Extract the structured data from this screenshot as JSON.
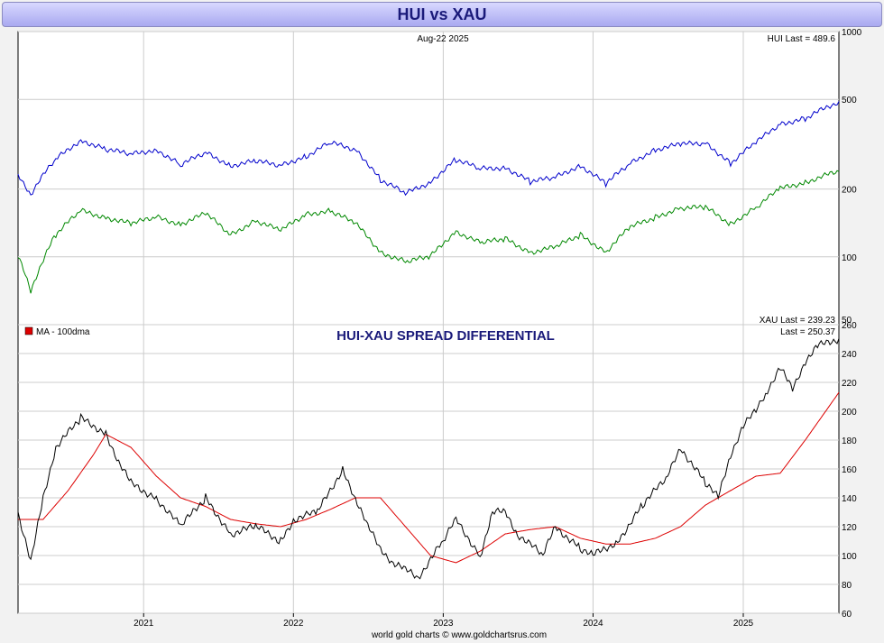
{
  "title": "HUI vs XAU",
  "footer": "world gold charts © www.goldchartsrus.com",
  "chart_data": [
    {
      "type": "line",
      "panel": "top",
      "date_label": "Aug-22  2025",
      "y_scale": "log",
      "ylim": [
        50,
        1000
      ],
      "y_ticks": [
        1000,
        500,
        200,
        100,
        50
      ],
      "x_range": [
        "2020-03",
        "2025-08-22"
      ],
      "grid": true,
      "annotations": [
        "HUI Last = 489.6",
        "XAU Last = 239.23"
      ],
      "series": [
        {
          "name": "HUI",
          "color": "#0000cc",
          "x": [
            "2020-03",
            "2020-04",
            "2020-06",
            "2020-08",
            "2020-10",
            "2020-12",
            "2021-02",
            "2021-04",
            "2021-06",
            "2021-08",
            "2021-10",
            "2021-12",
            "2022-02",
            "2022-04",
            "2022-06",
            "2022-08",
            "2022-10",
            "2022-12",
            "2023-02",
            "2023-04",
            "2023-06",
            "2023-08",
            "2023-10",
            "2023-12",
            "2024-02",
            "2024-04",
            "2024-06",
            "2024-08",
            "2024-10",
            "2024-12",
            "2025-02",
            "2025-04",
            "2025-06",
            "2025-08-22"
          ],
          "values": [
            230,
            190,
            270,
            330,
            300,
            285,
            300,
            255,
            290,
            255,
            265,
            255,
            280,
            320,
            300,
            220,
            190,
            215,
            270,
            245,
            250,
            215,
            225,
            255,
            210,
            260,
            300,
            315,
            320,
            260,
            320,
            390,
            410,
            489.6
          ]
        },
        {
          "name": "XAU",
          "color": "#008800",
          "x": [
            "2020-03",
            "2020-04",
            "2020-06",
            "2020-08",
            "2020-10",
            "2020-12",
            "2021-02",
            "2021-04",
            "2021-06",
            "2021-08",
            "2021-10",
            "2021-12",
            "2022-02",
            "2022-04",
            "2022-06",
            "2022-08",
            "2022-10",
            "2022-12",
            "2023-02",
            "2023-04",
            "2023-06",
            "2023-08",
            "2023-10",
            "2023-12",
            "2024-02",
            "2024-04",
            "2024-06",
            "2024-08",
            "2024-10",
            "2024-12",
            "2025-02",
            "2025-04",
            "2025-06",
            "2025-08-22"
          ],
          "values": [
            100,
            70,
            125,
            160,
            150,
            140,
            150,
            140,
            155,
            125,
            145,
            130,
            155,
            160,
            140,
            105,
            95,
            100,
            130,
            115,
            120,
            105,
            110,
            125,
            105,
            135,
            150,
            165,
            165,
            140,
            165,
            200,
            215,
            239.23
          ]
        }
      ]
    },
    {
      "type": "line",
      "panel": "bottom",
      "title": "HUI-XAU SPREAD DIFFERENTIAL",
      "ylim": [
        60,
        260
      ],
      "y_ticks": [
        260,
        240,
        220,
        200,
        180,
        160,
        140,
        120,
        100,
        80,
        60
      ],
      "x_tick_labels": [
        "2021",
        "2022",
        "2023",
        "2024",
        "2025"
      ],
      "x_range": [
        "2020-03",
        "2025-08-22"
      ],
      "grid": true,
      "legend": "top-left",
      "annotations": [
        "Last = 250.37"
      ],
      "series": [
        {
          "name": "spread",
          "color": "#000000",
          "x": [
            "2020-03",
            "2020-04",
            "2020-05",
            "2020-06",
            "2020-08",
            "2020-10",
            "2020-11",
            "2020-12",
            "2021-02",
            "2021-04",
            "2021-06",
            "2021-08",
            "2021-10",
            "2021-12",
            "2022-01",
            "2022-03",
            "2022-05",
            "2022-06",
            "2022-07",
            "2022-08",
            "2022-09",
            "2022-10",
            "2022-11",
            "2023-01",
            "2023-02",
            "2023-04",
            "2023-05",
            "2023-06",
            "2023-07",
            "2023-09",
            "2023-10",
            "2023-12",
            "2024-01",
            "2024-03",
            "2024-05",
            "2024-07",
            "2024-08",
            "2024-10",
            "2024-11",
            "2024-12",
            "2025-01",
            "2025-02",
            "2025-03",
            "2025-04",
            "2025-05",
            "2025-06",
            "2025-07",
            "2025-08-22"
          ],
          "values": [
            130,
            95,
            140,
            175,
            195,
            185,
            165,
            150,
            140,
            120,
            140,
            115,
            120,
            110,
            125,
            130,
            160,
            140,
            120,
            105,
            95,
            90,
            85,
            110,
            125,
            100,
            130,
            130,
            115,
            100,
            120,
            105,
            100,
            110,
            135,
            155,
            175,
            150,
            140,
            170,
            190,
            200,
            215,
            230,
            215,
            235,
            245,
            250.37
          ]
        },
        {
          "name": "MA - 100dma",
          "color": "#dd0000",
          "x": [
            "2020-03",
            "2020-05",
            "2020-07",
            "2020-09",
            "2020-10",
            "2020-12",
            "2021-02",
            "2021-04",
            "2021-06",
            "2021-08",
            "2021-10",
            "2021-12",
            "2022-02",
            "2022-04",
            "2022-06",
            "2022-08",
            "2022-10",
            "2022-12",
            "2023-02",
            "2023-04",
            "2023-06",
            "2023-08",
            "2023-10",
            "2023-12",
            "2024-02",
            "2024-04",
            "2024-06",
            "2024-08",
            "2024-10",
            "2024-12",
            "2025-02",
            "2025-04",
            "2025-06",
            "2025-08-22"
          ],
          "values": [
            125,
            125,
            145,
            170,
            184,
            175,
            155,
            140,
            134,
            125,
            122,
            120,
            125,
            132,
            140,
            140,
            120,
            100,
            95,
            103,
            115,
            118,
            120,
            112,
            108,
            108,
            112,
            120,
            135,
            145,
            155,
            157,
            180,
            213
          ]
        }
      ]
    }
  ]
}
